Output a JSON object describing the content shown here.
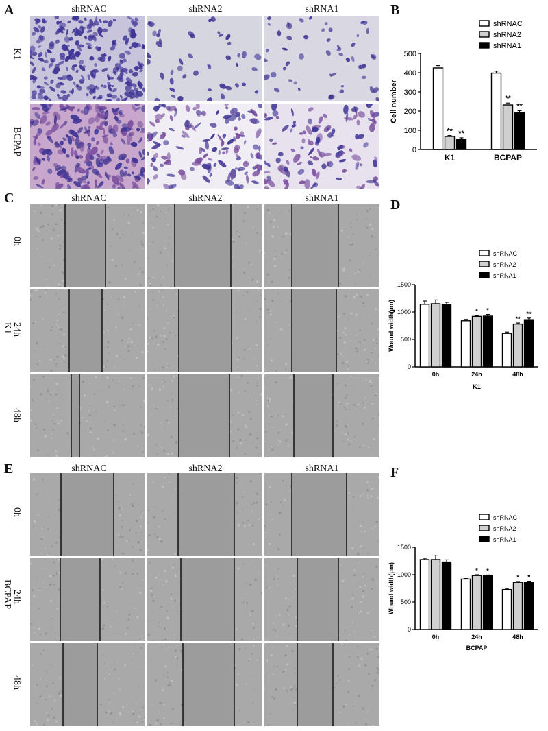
{
  "panels": {
    "A": {
      "letter": "A",
      "columns": [
        "shRNAC",
        "shRNA2",
        "shRNA1"
      ],
      "rows": [
        "K1",
        "BCPAP"
      ]
    },
    "B": {
      "letter": "B"
    },
    "C": {
      "letter": "C",
      "columns": [
        "shRNAC",
        "shRNA2",
        "shRNA1"
      ],
      "rows": [
        "0h",
        "24h",
        "48h"
      ],
      "cell_line": "K1"
    },
    "D": {
      "letter": "D"
    },
    "E": {
      "letter": "E",
      "columns": [
        "shRNAC",
        "shRNA2",
        "shRNA1"
      ],
      "rows": [
        "0h",
        "24h",
        "48h"
      ],
      "cell_line": "BCPAP"
    },
    "F": {
      "letter": "F"
    }
  },
  "colors": {
    "shRNAC": "#ffffff",
    "shRNA2": "#cfcfcf",
    "shRNA1": "#000000",
    "stain_purple": "#5a4fa8",
    "scratch_gray": "#9a9a9a"
  },
  "chart_data": [
    {
      "panel": "B",
      "type": "bar",
      "categories": [
        "K1",
        "BCPAP"
      ],
      "series": [
        {
          "name": "shRNAC",
          "values": [
            425,
            398
          ],
          "errors": [
            12,
            10
          ],
          "sig": [
            "",
            ""
          ]
        },
        {
          "name": "shRNA2",
          "values": [
            68,
            232
          ],
          "errors": [
            5,
            10
          ],
          "sig": [
            "**",
            "**"
          ]
        },
        {
          "name": "shRNA1",
          "values": [
            53,
            192
          ],
          "errors": [
            8,
            10
          ],
          "sig": [
            "**",
            "**"
          ]
        }
      ],
      "xlabel": "",
      "ylabel": "Cell number",
      "ylim": [
        0,
        500
      ],
      "yticks": [
        0,
        100,
        200,
        300,
        400,
        500
      ],
      "legend": "top-right"
    },
    {
      "panel": "D",
      "type": "bar",
      "categories": [
        "0h",
        "24h",
        "48h"
      ],
      "series": [
        {
          "name": "shRNAC",
          "values": [
            1140,
            840,
            610
          ],
          "errors": [
            60,
            25,
            25
          ],
          "sig": [
            "",
            "",
            ""
          ]
        },
        {
          "name": "shRNA2",
          "values": [
            1150,
            920,
            780
          ],
          "errors": [
            70,
            15,
            20
          ],
          "sig": [
            "",
            "*",
            "**"
          ]
        },
        {
          "name": "shRNA1",
          "values": [
            1140,
            925,
            860
          ],
          "errors": [
            35,
            30,
            30
          ],
          "sig": [
            "",
            "*",
            "**"
          ]
        }
      ],
      "xlabel": "K1",
      "ylabel": "Wound width(μm)",
      "ylim": [
        0,
        1500
      ],
      "yticks": [
        0,
        500,
        1000,
        1500
      ],
      "legend": "top-right"
    },
    {
      "panel": "F",
      "type": "bar",
      "categories": [
        "0h",
        "24h",
        "48h"
      ],
      "series": [
        {
          "name": "shRNAC",
          "values": [
            1275,
            920,
            730
          ],
          "errors": [
            25,
            10,
            20
          ],
          "sig": [
            "",
            "",
            ""
          ]
        },
        {
          "name": "shRNA2",
          "values": [
            1275,
            985,
            860
          ],
          "errors": [
            80,
            15,
            15
          ],
          "sig": [
            "",
            "*",
            "*"
          ]
        },
        {
          "name": "shRNA1",
          "values": [
            1230,
            980,
            865
          ],
          "errors": [
            40,
            15,
            15
          ],
          "sig": [
            "",
            "*",
            "*"
          ]
        }
      ],
      "xlabel": "BCPAP",
      "ylabel": "Wound width(μm)",
      "ylim": [
        0,
        1500
      ],
      "yticks": [
        0,
        500,
        1000,
        1500
      ],
      "legend": "top-right"
    }
  ]
}
